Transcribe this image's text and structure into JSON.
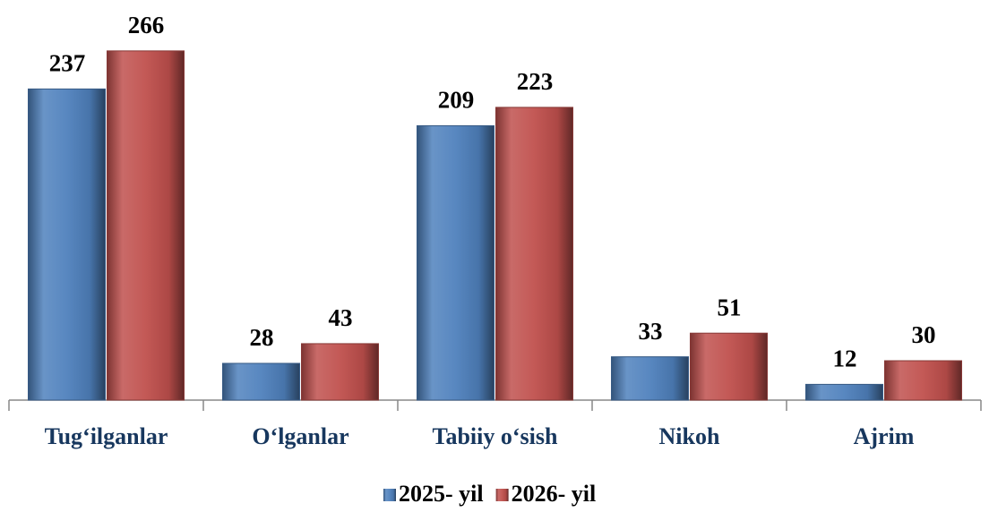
{
  "chart_data": {
    "type": "bar",
    "categories": [
      "Tug‘ilganlar",
      "O‘lganlar",
      "Tabiiy o‘sish",
      "Nikoh",
      "Ajrim"
    ],
    "series": [
      {
        "name": "2025- yil",
        "color": "#4f81bd",
        "values": [
          237,
          28,
          209,
          33,
          12
        ]
      },
      {
        "name": "2026- yil",
        "color": "#c0504d",
        "values": [
          266,
          43,
          223,
          51,
          30
        ]
      }
    ],
    "ylim": [
      0,
      300
    ]
  }
}
